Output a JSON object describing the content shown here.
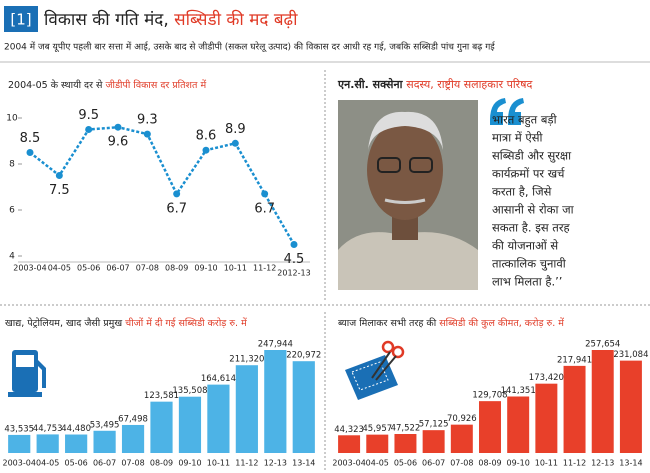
{
  "header": {
    "number": "[1]",
    "title": "विकास की गति मंद,",
    "title_highlight": "सब्सिडी की मद बढ़ी",
    "subtitle": "2004 में जब यूपीए पहली बार सत्ता में आई, उसके बाद से जीडीपी (सकल घरेलू उत्पाद) की विकास दर आधी रह गई, जबकि सब्सिडी पांच गुना बढ़ गई"
  },
  "profile": {
    "name": "एन.सी. सक्सेना",
    "role": "सदस्य, राष्ट्रीय सलाहकार परिषद",
    "quote_lines": [
      "भारत बहुत बड़ी",
      "मात्रा में ऐसी",
      "सब्सिडी और सुरक्षा",
      "कार्यक्रमों पर खर्च",
      "करता है, जिसे",
      "आसानी से रोका जा",
      "सकता है. इस तरह",
      "की योजनाओं से",
      "तात्कालिक चुनावी",
      "लाभ मिलता है.’’"
    ]
  },
  "chart_data": [
    {
      "type": "line",
      "title": "2004-05 के स्थायी दर से ",
      "title_highlight": "जीडीपी विकास दर प्रतिशत में",
      "categories": [
        "2003-04",
        "04-05",
        "05-06",
        "06-07",
        "07-08",
        "08-09",
        "09-10",
        "10-11",
        "11-12",
        "2012-13"
      ],
      "values": [
        8.5,
        7.5,
        9.5,
        9.6,
        9.3,
        6.7,
        8.6,
        8.9,
        6.7,
        4.5
      ],
      "color": "#1a8fd0",
      "ylim": [
        4,
        10
      ],
      "yticks": [
        4,
        6,
        8,
        10
      ]
    },
    {
      "type": "bar",
      "title": "खाद्य, पेट्रोलियम, खाद जैसी प्रमुख ",
      "title_highlight": "चीजों में दी गई सब्सिडी करोड़ रु. में",
      "categories": [
        "2003-04",
        "04-05",
        "05-06",
        "06-07",
        "07-08",
        "08-09",
        "09-10",
        "10-11",
        "11-12",
        "12-13",
        "13-14"
      ],
      "values": [
        43535,
        44753,
        44480,
        53495,
        67498,
        123581,
        135508,
        164614,
        211320,
        247944,
        220972
      ],
      "value_labels": [
        "43,535",
        "44,753",
        "44,480",
        "53,495",
        "67,498",
        "123,581",
        "135,508",
        "164,614",
        "211,320",
        "247,944",
        "220,972"
      ],
      "color": "#4db3e6"
    },
    {
      "type": "bar",
      "title": "ब्याज मिलाकर सभी तरह की ",
      "title_highlight": "सब्सिडी की कुल कीमत, करोड़ रु. में",
      "categories": [
        "2003-04",
        "04-05",
        "05-06",
        "06-07",
        "07-08",
        "08-09",
        "09-10",
        "10-11",
        "11-12",
        "12-13",
        "13-14"
      ],
      "values": [
        44323,
        45957,
        47522,
        57125,
        70926,
        129708,
        141351,
        173420,
        217941,
        257654,
        231084
      ],
      "value_labels": [
        "44,323",
        "45,957",
        "47,522",
        "57,125",
        "70,926",
        "129,708",
        "141,351",
        "173,420",
        "217,941",
        "257,654",
        "231,084"
      ],
      "color": "#e8402a"
    }
  ]
}
